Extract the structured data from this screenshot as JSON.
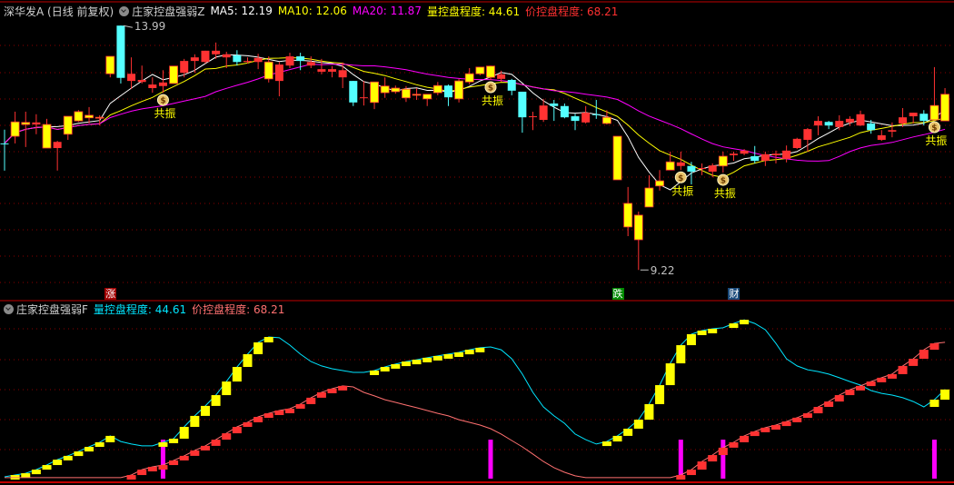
{
  "header": {
    "stock": "深华发A (日线 前复权)",
    "indicator": "庄家控盘强弱Z",
    "ma5_label": "MA5: 12.19",
    "ma10_label": "MA10: 12.06",
    "ma20_label": "MA20: 11.87",
    "vol_ctrl_label": "量控盘程度: 44.61",
    "price_ctrl_label": "价控盘程度: 68.21"
  },
  "sub_header": {
    "indicator": "庄家控盘强弱F",
    "vol_ctrl_label": "量控盘程度: 44.61",
    "price_ctrl_label": "价控盘程度: 68.21"
  },
  "colors": {
    "up": "#ff3232",
    "down": "#54ffff",
    "yellow": "#ffff00",
    "ma5": "#ffffff",
    "ma10": "#ffff00",
    "ma20": "#ff00ff",
    "vol_ctrl": "#00e5ff",
    "price_ctrl": "#ff7070",
    "signal": "#ff00ff",
    "grid": "#8b0000",
    "frame": "#c00000"
  },
  "chart_data": [
    {
      "type": "candlestick",
      "title": "深华发A (日线 前复权)",
      "ylim": [
        9.0,
        14.2
      ],
      "grid": true,
      "high_label": "13.99",
      "low_label": "9.22",
      "high_index": 11,
      "low_index": 60,
      "ma_periods": [
        5,
        10,
        20
      ],
      "candles": [
        [
          11.69,
          11.96,
          11.16,
          11.69,
          "c"
        ],
        [
          11.83,
          12.31,
          11.69,
          12.11,
          "y"
        ],
        [
          12.06,
          12.31,
          11.62,
          12.1,
          "y"
        ],
        [
          12.06,
          12.26,
          11.87,
          12.1,
          "r"
        ],
        [
          11.6,
          12.17,
          11.6,
          12.06,
          "y"
        ],
        [
          11.6,
          11.74,
          11.16,
          11.72,
          "r"
        ],
        [
          11.87,
          12.22,
          11.76,
          12.22,
          "y"
        ],
        [
          12.13,
          12.34,
          12.11,
          12.31,
          "y"
        ],
        [
          12.19,
          12.4,
          12.08,
          12.24,
          "y"
        ],
        [
          12.2,
          12.24,
          12.04,
          12.2,
          "y"
        ],
        [
          13.05,
          13.39,
          12.98,
          13.39,
          "y"
        ],
        [
          13.99,
          13.99,
          12.86,
          12.97,
          "c"
        ],
        [
          12.91,
          13.37,
          12.75,
          13.05,
          "r"
        ],
        [
          12.89,
          13.21,
          12.86,
          12.93,
          "r"
        ],
        [
          12.77,
          12.98,
          12.68,
          12.84,
          "r"
        ],
        [
          12.81,
          13.12,
          12.68,
          12.88,
          "r"
        ],
        [
          12.86,
          13.2,
          12.86,
          13.2,
          "y"
        ],
        [
          13.07,
          13.34,
          12.98,
          13.3,
          "r"
        ],
        [
          13.3,
          13.43,
          13.07,
          13.37,
          "r"
        ],
        [
          13.28,
          13.5,
          13.25,
          13.5,
          "r"
        ],
        [
          13.43,
          13.66,
          13.34,
          13.5,
          "r"
        ],
        [
          13.37,
          13.48,
          13.16,
          13.43,
          "r"
        ],
        [
          13.41,
          13.51,
          13.21,
          13.28,
          "c"
        ],
        [
          13.28,
          13.37,
          13.25,
          13.3,
          "r"
        ],
        [
          13.28,
          13.44,
          13.14,
          13.36,
          "r"
        ],
        [
          12.95,
          13.39,
          12.88,
          13.28,
          "y"
        ],
        [
          12.91,
          13.28,
          12.61,
          13.23,
          "r"
        ],
        [
          13.21,
          13.46,
          13.16,
          13.39,
          "r"
        ],
        [
          13.39,
          13.46,
          13.12,
          13.3,
          "c"
        ],
        [
          13.21,
          13.39,
          13.16,
          13.28,
          "r"
        ],
        [
          13.09,
          13.34,
          13.04,
          13.14,
          "r"
        ],
        [
          13.09,
          13.2,
          12.98,
          13.14,
          "r"
        ],
        [
          12.98,
          13.27,
          12.77,
          13.12,
          "r"
        ],
        [
          12.91,
          12.91,
          12.42,
          12.49,
          "c"
        ],
        [
          12.59,
          12.91,
          12.43,
          12.59,
          "r"
        ],
        [
          12.49,
          12.89,
          12.36,
          12.89,
          "y"
        ],
        [
          12.68,
          12.98,
          12.58,
          12.81,
          "y"
        ],
        [
          12.7,
          12.82,
          12.66,
          12.77,
          "y"
        ],
        [
          12.58,
          12.81,
          12.5,
          12.75,
          "y"
        ],
        [
          12.63,
          12.77,
          12.54,
          12.65,
          "y"
        ],
        [
          12.56,
          12.65,
          12.42,
          12.65,
          "y"
        ],
        [
          12.68,
          12.89,
          12.63,
          12.82,
          "y"
        ],
        [
          12.82,
          12.84,
          12.42,
          12.59,
          "c"
        ],
        [
          12.56,
          12.95,
          12.49,
          12.91,
          "y"
        ],
        [
          12.89,
          13.16,
          12.84,
          13.05,
          "y"
        ],
        [
          13.05,
          13.18,
          13.02,
          13.18,
          "y"
        ],
        [
          12.98,
          13.21,
          12.93,
          13.2,
          "y"
        ],
        [
          12.95,
          13.11,
          12.89,
          13.04,
          "r"
        ],
        [
          12.93,
          12.95,
          12.63,
          12.72,
          "c"
        ],
        [
          12.7,
          12.7,
          11.9,
          12.2,
          "c"
        ],
        [
          12.22,
          12.31,
          11.95,
          12.22,
          "r"
        ],
        [
          12.15,
          12.56,
          12.11,
          12.43,
          "r"
        ],
        [
          12.47,
          12.54,
          12.13,
          12.42,
          "c"
        ],
        [
          12.42,
          12.47,
          12.18,
          12.2,
          "c"
        ],
        [
          12.22,
          12.27,
          11.95,
          12.13,
          "c"
        ],
        [
          12.1,
          12.42,
          12.08,
          12.29,
          "r"
        ],
        [
          12.26,
          12.54,
          12.17,
          12.25,
          "c"
        ],
        [
          12.08,
          12.34,
          12.06,
          12.2,
          "y"
        ],
        [
          10.98,
          11.83,
          10.98,
          11.83,
          "y"
        ],
        [
          10.06,
          10.84,
          9.88,
          10.52,
          "y"
        ],
        [
          9.81,
          10.36,
          9.22,
          10.29,
          "y"
        ],
        [
          10.45,
          11.07,
          10.45,
          10.82,
          "y"
        ],
        [
          10.86,
          11.17,
          10.77,
          10.96,
          "y"
        ],
        [
          11.17,
          11.53,
          11.17,
          11.33,
          "y"
        ],
        [
          11.25,
          11.53,
          11.17,
          11.32,
          "r"
        ],
        [
          11.25,
          11.33,
          10.89,
          11.14,
          "c"
        ],
        [
          11.21,
          11.3,
          11.07,
          11.21,
          "r"
        ],
        [
          11.14,
          11.3,
          11.03,
          11.26,
          "r"
        ],
        [
          11.25,
          11.53,
          11.12,
          11.44,
          "y"
        ],
        [
          11.46,
          11.53,
          11.35,
          11.49,
          "r"
        ],
        [
          11.49,
          11.58,
          11.46,
          11.55,
          "r"
        ],
        [
          11.44,
          11.64,
          11.3,
          11.35,
          "c"
        ],
        [
          11.35,
          11.53,
          11.25,
          11.48,
          "r"
        ],
        [
          11.46,
          11.55,
          11.3,
          11.49,
          "r"
        ],
        [
          11.39,
          11.65,
          11.32,
          11.55,
          "r"
        ],
        [
          11.6,
          11.8,
          11.58,
          11.78,
          "r"
        ],
        [
          11.76,
          11.99,
          11.53,
          11.97,
          "r"
        ],
        [
          12.04,
          12.22,
          11.85,
          12.13,
          "r"
        ],
        [
          12.11,
          12.13,
          11.97,
          12.04,
          "c"
        ],
        [
          12.01,
          12.24,
          11.95,
          12.13,
          "r"
        ],
        [
          12.1,
          12.22,
          12.03,
          12.17,
          "r"
        ],
        [
          12.04,
          12.33,
          12.03,
          12.26,
          "r"
        ],
        [
          12.08,
          12.15,
          11.88,
          11.95,
          "c"
        ],
        [
          11.76,
          11.95,
          11.74,
          11.85,
          "r"
        ],
        [
          11.92,
          12.1,
          11.81,
          11.95,
          "r"
        ],
        [
          12.08,
          12.38,
          12.01,
          12.2,
          "r"
        ],
        [
          12.22,
          12.29,
          12.08,
          12.29,
          "r"
        ],
        [
          12.27,
          12.34,
          12.04,
          12.13,
          "c"
        ],
        [
          12.15,
          13.18,
          12.15,
          12.43,
          "y"
        ],
        [
          12.13,
          12.77,
          12.13,
          12.65,
          "y"
        ]
      ],
      "resonance_indices": [
        15,
        46,
        64,
        68,
        88
      ],
      "resonance_label": "共振",
      "signals": [
        {
          "index": 10,
          "label": "涨",
          "bg": "#a00000"
        },
        {
          "index": 58,
          "label": "跌",
          "bg": "#008a00"
        },
        {
          "index": 69,
          "label": "财",
          "bg": "#1a4a7a"
        }
      ]
    },
    {
      "type": "line",
      "title": "庄家控盘强弱F",
      "ylim": [
        0,
        80
      ],
      "grid": true,
      "series": [
        {
          "name": "量控盘程度",
          "values": [
            0.9,
            1.8,
            2.7,
            4.5,
            6.8,
            9.5,
            11.4,
            13.6,
            15.9,
            18.2,
            21.4,
            18.6,
            17.3,
            16.4,
            16.4,
            18.2,
            20.0,
            25.9,
            31.4,
            36.4,
            41.8,
            48.6,
            55.9,
            62.3,
            68.2,
            70.9,
            70.5,
            66.8,
            62.3,
            58.6,
            56.4,
            55.0,
            54.1,
            53.2,
            53.2,
            54.1,
            55.9,
            57.3,
            58.6,
            59.5,
            60.5,
            61.4,
            62.3,
            63.2,
            64.5,
            65.5,
            65.9,
            64.5,
            60.0,
            52.3,
            43.2,
            35.9,
            31.4,
            27.7,
            22.3,
            19.5,
            17.3,
            18.6,
            21.4,
            25.0,
            29.5,
            37.3,
            46.8,
            57.7,
            66.8,
            72.3,
            74.1,
            75.0,
            75.5,
            77.7,
            79.5,
            77.7,
            74.5,
            67.7,
            60.0,
            56.4,
            54.5,
            53.6,
            52.3,
            50.5,
            48.6,
            46.8,
            44.1,
            42.7,
            41.8,
            40.5,
            38.6,
            35.9,
            39.5,
            44.61
          ]
        },
        {
          "name": "价控盘程度",
          "values": [
            0.5,
            0.5,
            0.5,
            0.5,
            0.5,
            0.5,
            0.5,
            0.5,
            0.5,
            0.5,
            0.5,
            0.5,
            1.8,
            4.5,
            5.9,
            6.8,
            9.1,
            11.4,
            14.1,
            16.4,
            19.5,
            22.7,
            25.9,
            28.2,
            30.9,
            32.7,
            34.1,
            35.0,
            37.3,
            40.5,
            43.2,
            45.0,
            46.4,
            45.9,
            43.2,
            41.4,
            39.5,
            38.2,
            36.8,
            35.5,
            34.1,
            32.7,
            31.4,
            29.5,
            28.2,
            26.8,
            25.0,
            22.3,
            19.1,
            15.9,
            12.3,
            8.6,
            5.5,
            3.2,
            1.4,
            0.5,
            0.5,
            0.5,
            0.5,
            0.5,
            0.5,
            0.5,
            0.5,
            0.5,
            1.8,
            4.5,
            8.6,
            11.8,
            15.5,
            18.2,
            21.4,
            23.6,
            25.5,
            26.8,
            28.6,
            30.5,
            32.7,
            35.9,
            38.6,
            41.8,
            44.5,
            46.4,
            48.6,
            50.5,
            52.3,
            56.4,
            60.0,
            64.5,
            67.7,
            68.21
          ]
        }
      ],
      "signal_bar_indices": [
        15,
        46,
        64,
        68,
        88
      ],
      "signal_bar_value": 19.5
    }
  ]
}
